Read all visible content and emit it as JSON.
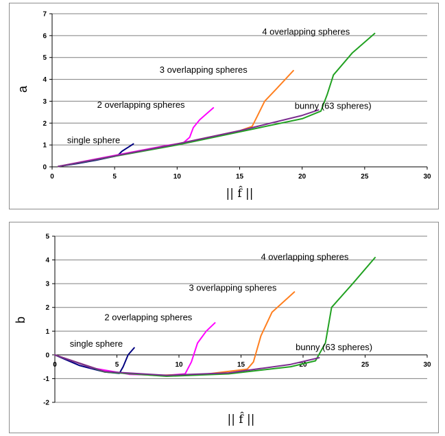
{
  "chart_data": [
    {
      "panel": "a",
      "type": "line",
      "ylabel": "a",
      "xlabel": "|| f̂ ||",
      "xlim": [
        0,
        30
      ],
      "ylim": [
        0,
        7
      ],
      "xticks": [
        "0",
        "5",
        "10",
        "15",
        "20",
        "25",
        "30"
      ],
      "yticks": [
        "0",
        "1",
        "2",
        "3",
        "4",
        "5",
        "6",
        "7"
      ],
      "grid": "horizontal",
      "series": [
        {
          "name": "single sphere",
          "color": "#000080",
          "x": [
            0.5,
            2,
            3.5,
            5,
            5.3,
            5.6,
            6.1,
            6.5
          ],
          "y": [
            0.02,
            0.15,
            0.3,
            0.48,
            0.55,
            0.72,
            0.9,
            1.05
          ]
        },
        {
          "name": "2 overlapping spheres",
          "color": "#ff00ff",
          "x": [
            0.5,
            3,
            6,
            9,
            10.5,
            11,
            11.3,
            11.8,
            12.3,
            12.9
          ],
          "y": [
            0.02,
            0.3,
            0.63,
            0.96,
            1.1,
            1.35,
            1.8,
            2.15,
            2.4,
            2.7
          ]
        },
        {
          "name": "3 overlapping spheres",
          "color": "#ff7f1f",
          "x": [
            0.5,
            5,
            10,
            15,
            16,
            16.4,
            17,
            18,
            19.3
          ],
          "y": [
            0.02,
            0.5,
            1.05,
            1.65,
            1.85,
            2.3,
            3.0,
            3.6,
            4.4
          ]
        },
        {
          "name": "4 overlapping spheres",
          "color": "#21a121",
          "x": [
            0.5,
            5,
            10,
            15,
            20,
            21.5,
            22,
            22.5,
            24,
            25.8
          ],
          "y": [
            0.02,
            0.48,
            1.0,
            1.6,
            2.2,
            2.55,
            3.3,
            4.2,
            5.2,
            6.1
          ]
        },
        {
          "name": "bunny (63 spheres)",
          "color": "#7b2c8f",
          "x": [
            0.5,
            5,
            10,
            15,
            20,
            21.3
          ],
          "y": [
            0.02,
            0.5,
            1.05,
            1.65,
            2.35,
            2.6
          ]
        }
      ],
      "annotations": [
        {
          "text": "single sphere",
          "x": 1.2,
          "y": 1.08
        },
        {
          "text": "2 overlapping spheres",
          "x": 3.6,
          "y": 2.7
        },
        {
          "text": "3 overlapping spheres",
          "x": 8.6,
          "y": 4.3
        },
        {
          "text": "4 overlapping spheres",
          "x": 16.8,
          "y": 6.05
        },
        {
          "text": "bunny (63 spheres)",
          "x": 19.4,
          "y": 2.65
        }
      ]
    },
    {
      "panel": "b",
      "type": "line",
      "ylabel": "b",
      "xlabel": "|| f̂ ||",
      "xlim": [
        0,
        30
      ],
      "ylim": [
        -2,
        5
      ],
      "xticks": [
        "0",
        "5",
        "10",
        "15",
        "20",
        "25",
        "30"
      ],
      "yticks": [
        "-2",
        "-1",
        "0",
        "1",
        "2",
        "3",
        "4",
        "5"
      ],
      "grid": "horizontal",
      "series": [
        {
          "name": "single sphere",
          "color": "#000080",
          "x": [
            0,
            2,
            4,
            5.2,
            5.5,
            5.9,
            6.4
          ],
          "y": [
            0,
            -0.45,
            -0.72,
            -0.78,
            -0.5,
            0.0,
            0.3
          ]
        },
        {
          "name": "2 overlapping spheres",
          "color": "#ff00ff",
          "x": [
            0,
            3,
            6,
            9,
            10.5,
            11.0,
            11.5,
            12.2,
            12.9
          ],
          "y": [
            0,
            -0.55,
            -0.82,
            -0.86,
            -0.8,
            -0.3,
            0.5,
            1.0,
            1.35
          ]
        },
        {
          "name": "3 overlapping spheres",
          "color": "#ff7f1f",
          "x": [
            0,
            4,
            8,
            12,
            15.5,
            16.0,
            16.6,
            17.5,
            19.3
          ],
          "y": [
            0,
            -0.7,
            -0.86,
            -0.82,
            -0.6,
            -0.3,
            0.8,
            1.8,
            2.65
          ]
        },
        {
          "name": "4 overlapping spheres",
          "color": "#21a121",
          "x": [
            0,
            4,
            9,
            14,
            19,
            21,
            21.8,
            22.3,
            24,
            25.8
          ],
          "y": [
            0,
            -0.72,
            -0.9,
            -0.8,
            -0.5,
            -0.25,
            0.5,
            2.0,
            3.0,
            4.1
          ]
        },
        {
          "name": "bunny (63 spheres)",
          "color": "#7b2c8f",
          "x": [
            0,
            4,
            9,
            14,
            19,
            21.3
          ],
          "y": [
            0,
            -0.7,
            -0.86,
            -0.76,
            -0.4,
            -0.12
          ]
        }
      ],
      "annotations": [
        {
          "text": "single sphere",
          "x": 1.2,
          "y": 0.35
        },
        {
          "text": "2 overlapping spheres",
          "x": 4.0,
          "y": 1.45
        },
        {
          "text": "3 overlapping spheres",
          "x": 10.8,
          "y": 2.7
        },
        {
          "text": "4 overlapping spheres",
          "x": 16.6,
          "y": 4.0
        },
        {
          "text": "bunny (63 spheres)",
          "x": 19.4,
          "y": 0.2
        }
      ]
    }
  ]
}
